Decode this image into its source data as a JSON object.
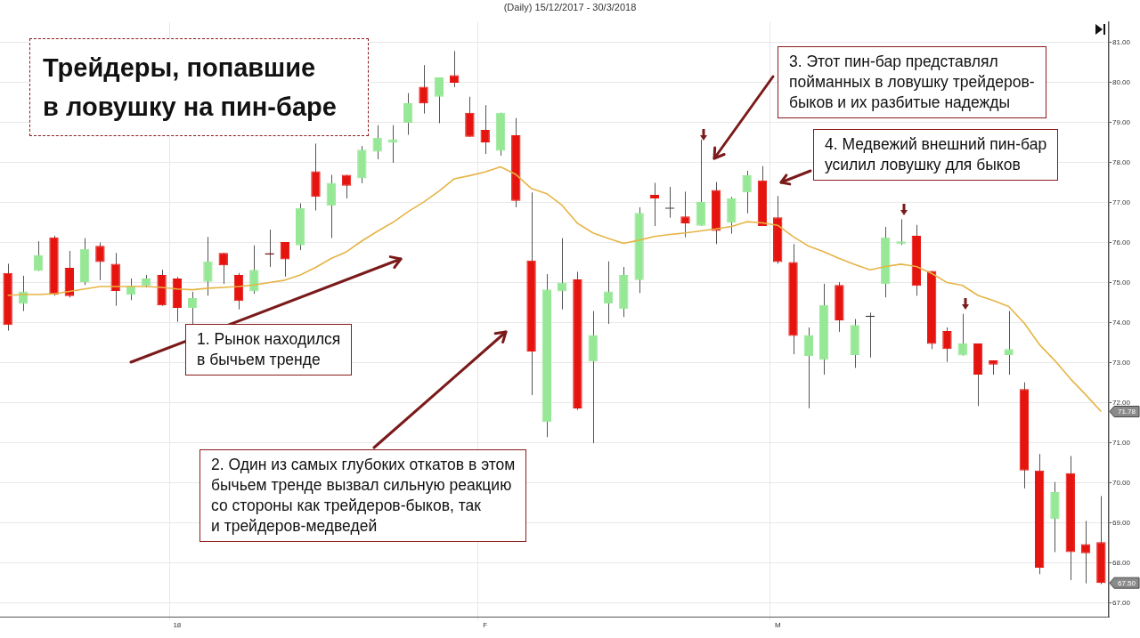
{
  "chart_data": {
    "type": "candlestick",
    "title": "Трейдеры, попавшие в ловушку на пин-баре",
    "subtitle": "(Daily) 15/12/2017 - 30/3/2018",
    "categories": [
      null,
      null,
      null,
      null,
      null,
      null,
      null,
      null,
      null,
      null,
      null,
      "18",
      null,
      null,
      null,
      null,
      null,
      null,
      null,
      null,
      null,
      null,
      null,
      null,
      null,
      null,
      null,
      null,
      null,
      null,
      null,
      "F",
      null,
      null,
      null,
      null,
      null,
      null,
      null,
      null,
      null,
      null,
      null,
      null,
      null,
      null,
      null,
      null,
      null,
      null,
      "M",
      null,
      null,
      null,
      null,
      null,
      null,
      null,
      null,
      null,
      null,
      null,
      null,
      null,
      null,
      null,
      null,
      null,
      null,
      null,
      null,
      null
    ],
    "ohlc": [
      [
        75.24,
        75.47,
        73.8,
        73.94
      ],
      [
        74.47,
        75.17,
        74.29,
        74.78
      ],
      [
        75.29,
        76.03,
        75.29,
        75.69
      ],
      [
        76.13,
        76.17,
        74.67,
        74.7
      ],
      [
        75.37,
        75.79,
        74.63,
        74.66
      ],
      [
        75.01,
        76.11,
        74.94,
        75.84
      ],
      [
        75.92,
        76.0,
        75.06,
        75.51
      ],
      [
        75.47,
        75.74,
        74.42,
        74.79
      ],
      [
        74.69,
        75.1,
        74.56,
        74.92
      ],
      [
        74.92,
        75.19,
        74.88,
        75.1
      ],
      [
        75.19,
        75.32,
        74.42,
        74.43
      ],
      [
        75.1,
        75.14,
        74.02,
        74.37
      ],
      [
        74.37,
        74.77,
        73.96,
        74.61
      ],
      [
        75.02,
        76.14,
        74.67,
        75.53
      ],
      [
        75.74,
        75.74,
        74.97,
        75.43
      ],
      [
        75.19,
        75.24,
        74.33,
        74.54
      ],
      [
        74.78,
        75.93,
        74.72,
        75.32
      ],
      [
        75.7,
        76.32,
        75.39,
        75.7
      ],
      [
        76.01,
        76.01,
        75.15,
        75.58
      ],
      [
        75.93,
        76.98,
        75.81,
        76.86
      ],
      [
        77.78,
        78.47,
        76.8,
        77.14
      ],
      [
        76.92,
        77.69,
        76.11,
        77.49
      ],
      [
        77.69,
        77.69,
        77.1,
        77.42
      ],
      [
        77.6,
        78.41,
        77.48,
        78.32
      ],
      [
        78.27,
        78.93,
        78.08,
        78.62
      ],
      [
        78.49,
        78.93,
        77.99,
        78.58
      ],
      [
        78.99,
        79.73,
        78.69,
        79.48
      ],
      [
        79.89,
        80.43,
        79.22,
        79.47
      ],
      [
        79.64,
        80.12,
        78.98,
        80.12
      ],
      [
        80.18,
        80.78,
        79.88,
        79.99
      ],
      [
        79.24,
        79.64,
        78.64,
        78.64
      ],
      [
        78.81,
        79.43,
        78.21,
        78.5
      ],
      [
        78.29,
        79.24,
        78.17,
        79.24
      ],
      [
        78.68,
        79.11,
        76.88,
        77.04
      ],
      [
        75.55,
        77.25,
        72.19,
        73.28
      ],
      [
        71.52,
        75.21,
        71.14,
        74.83
      ],
      [
        74.78,
        76.11,
        74.33,
        75.0
      ],
      [
        75.08,
        75.27,
        71.82,
        71.86
      ],
      [
        73.03,
        74.29,
        70.99,
        73.69
      ],
      [
        74.48,
        75.53,
        73.97,
        74.78
      ],
      [
        74.34,
        75.39,
        74.14,
        75.19
      ],
      [
        75.06,
        76.88,
        74.74,
        76.74
      ],
      [
        77.19,
        77.49,
        76.41,
        77.1
      ],
      [
        76.84,
        77.39,
        76.62,
        76.84
      ],
      [
        76.65,
        77.27,
        76.13,
        76.48
      ],
      [
        76.42,
        78.57,
        76.42,
        77.01
      ],
      [
        77.31,
        77.51,
        75.96,
        76.29
      ],
      [
        76.49,
        77.14,
        76.22,
        77.1
      ],
      [
        77.25,
        77.79,
        76.73,
        77.68
      ],
      [
        77.55,
        77.91,
        76.41,
        76.41
      ],
      [
        76.63,
        77.16,
        75.47,
        75.51
      ],
      [
        75.51,
        75.96,
        73.21,
        73.67
      ],
      [
        73.17,
        73.88,
        71.86,
        73.69
      ],
      [
        73.07,
        74.97,
        72.7,
        74.44
      ],
      [
        74.94,
        75.01,
        73.77,
        74.06
      ],
      [
        73.19,
        74.09,
        72.87,
        73.94
      ],
      [
        74.14,
        74.25,
        73.13,
        74.14
      ],
      [
        74.96,
        76.39,
        74.63,
        76.13
      ],
      [
        75.96,
        76.58,
        75.94,
        76.03
      ],
      [
        76.17,
        76.44,
        74.67,
        74.92
      ],
      [
        75.29,
        75.29,
        73.34,
        73.47
      ],
      [
        73.79,
        73.88,
        73.02,
        73.34
      ],
      [
        73.18,
        74.22,
        73.18,
        73.48
      ],
      [
        73.48,
        73.48,
        71.92,
        72.7
      ],
      [
        73.06,
        73.06,
        72.7,
        72.95
      ],
      [
        73.19,
        74.29,
        72.7,
        73.34
      ],
      [
        72.34,
        72.51,
        69.86,
        70.31
      ],
      [
        70.31,
        70.72,
        67.72,
        67.88
      ],
      [
        69.1,
        70.02,
        68.27,
        69.77
      ],
      [
        70.24,
        70.67,
        67.57,
        68.27
      ],
      [
        68.47,
        69.05,
        67.49,
        68.24
      ],
      [
        68.52,
        69.67,
        67.47,
        67.5
      ]
    ],
    "colors": [
      "#e5140f",
      "#96e896",
      "#96e896",
      "#e5140f",
      "#e5140f",
      "#96e896",
      "#e5140f",
      "#e5140f",
      "#96e896",
      "#96e896",
      "#e5140f",
      "#e5140f",
      "#96e896",
      "#96e896",
      "#e5140f",
      "#e5140f",
      "#96e896",
      "#7a1010",
      "#e5140f",
      "#96e896",
      "#e5140f",
      "#96e896",
      "#e5140f",
      "#96e896",
      "#96e896",
      "#96e896",
      "#96e896",
      "#e5140f",
      "#96e896",
      "#e5140f",
      "#e5140f",
      "#e5140f",
      "#96e896",
      "#e5140f",
      "#e5140f",
      "#96e896",
      "#96e896",
      "#e5140f",
      "#96e896",
      "#96e896",
      "#96e896",
      "#96e896",
      "#e5140f",
      "#555555",
      "#e5140f",
      "#96e896",
      "#e5140f",
      "#96e896",
      "#96e896",
      "#e5140f",
      "#e5140f",
      "#e5140f",
      "#96e896",
      "#96e896",
      "#e5140f",
      "#96e896",
      "#333333",
      "#96e896",
      "#96e896",
      "#e5140f",
      "#e5140f",
      "#e5140f",
      "#96e896",
      "#e5140f",
      "#e5140f",
      "#96e896",
      "#e5140f",
      "#e5140f",
      "#96e896",
      "#e5140f",
      "#e5140f",
      "#e5140f"
    ],
    "series": [
      {
        "type": "line",
        "color": "#e6b445",
        "values": [
          74.68,
          74.7,
          74.7,
          74.72,
          74.78,
          74.84,
          74.9,
          74.9,
          74.9,
          74.9,
          74.88,
          74.84,
          74.82,
          74.86,
          74.88,
          74.9,
          74.94,
          75.0,
          75.06,
          75.19,
          75.38,
          75.6,
          75.77,
          76.04,
          76.28,
          76.5,
          76.77,
          77.01,
          77.28,
          77.59,
          77.67,
          77.76,
          77.89,
          77.7,
          77.35,
          77.22,
          76.93,
          76.48,
          76.24,
          76.1,
          75.98,
          76.06,
          76.15,
          76.2,
          76.24,
          76.29,
          76.34,
          76.4,
          76.52,
          76.49,
          76.43,
          76.15,
          75.91,
          75.77,
          75.6,
          75.45,
          75.32,
          75.4,
          75.46,
          75.4,
          75.23,
          75.0,
          74.93,
          74.68,
          74.55,
          74.4,
          73.99,
          73.45,
          73.05,
          72.6,
          72.2,
          71.78
        ]
      }
    ],
    "ylim": [
      66.65,
      81.5
    ],
    "yticks": [
      {
        "value": 67,
        "label": "67.00"
      },
      {
        "value": 68,
        "label": "68.00"
      },
      {
        "value": 69,
        "label": "69.00"
      },
      {
        "value": 70,
        "label": "70.00"
      },
      {
        "value": 71,
        "label": "71.00"
      },
      {
        "value": 72,
        "label": "72.00"
      },
      {
        "value": 73,
        "label": "73.00"
      },
      {
        "value": 74,
        "label": "74.00"
      },
      {
        "value": 75,
        "label": "75.00"
      },
      {
        "value": 76,
        "label": "76.00"
      },
      {
        "value": 77,
        "label": "77.00"
      },
      {
        "value": 78,
        "label": "78.00"
      },
      {
        "value": 79,
        "label": "79.00"
      },
      {
        "value": 80,
        "label": "80.00"
      },
      {
        "value": 81,
        "label": "81.00"
      }
    ],
    "grid": true,
    "annotations": [
      "1. Рынок находился\nв бычьем тренде",
      "2. Один из самых глубоких откатов в этом\nбычьем тренде вызвал сильную реакцию\nсо стороны как трейдеров-быков, так\nи трейдеров-медведей",
      "3. Этот пин-бар представлял\nпойманных в ловушку трейдеров-\nбыков и их разбитые надежды",
      "4. Медвежий внешний пин-бар\nусилил ловушку для быков",
      "71.78",
      "67.50"
    ]
  }
}
